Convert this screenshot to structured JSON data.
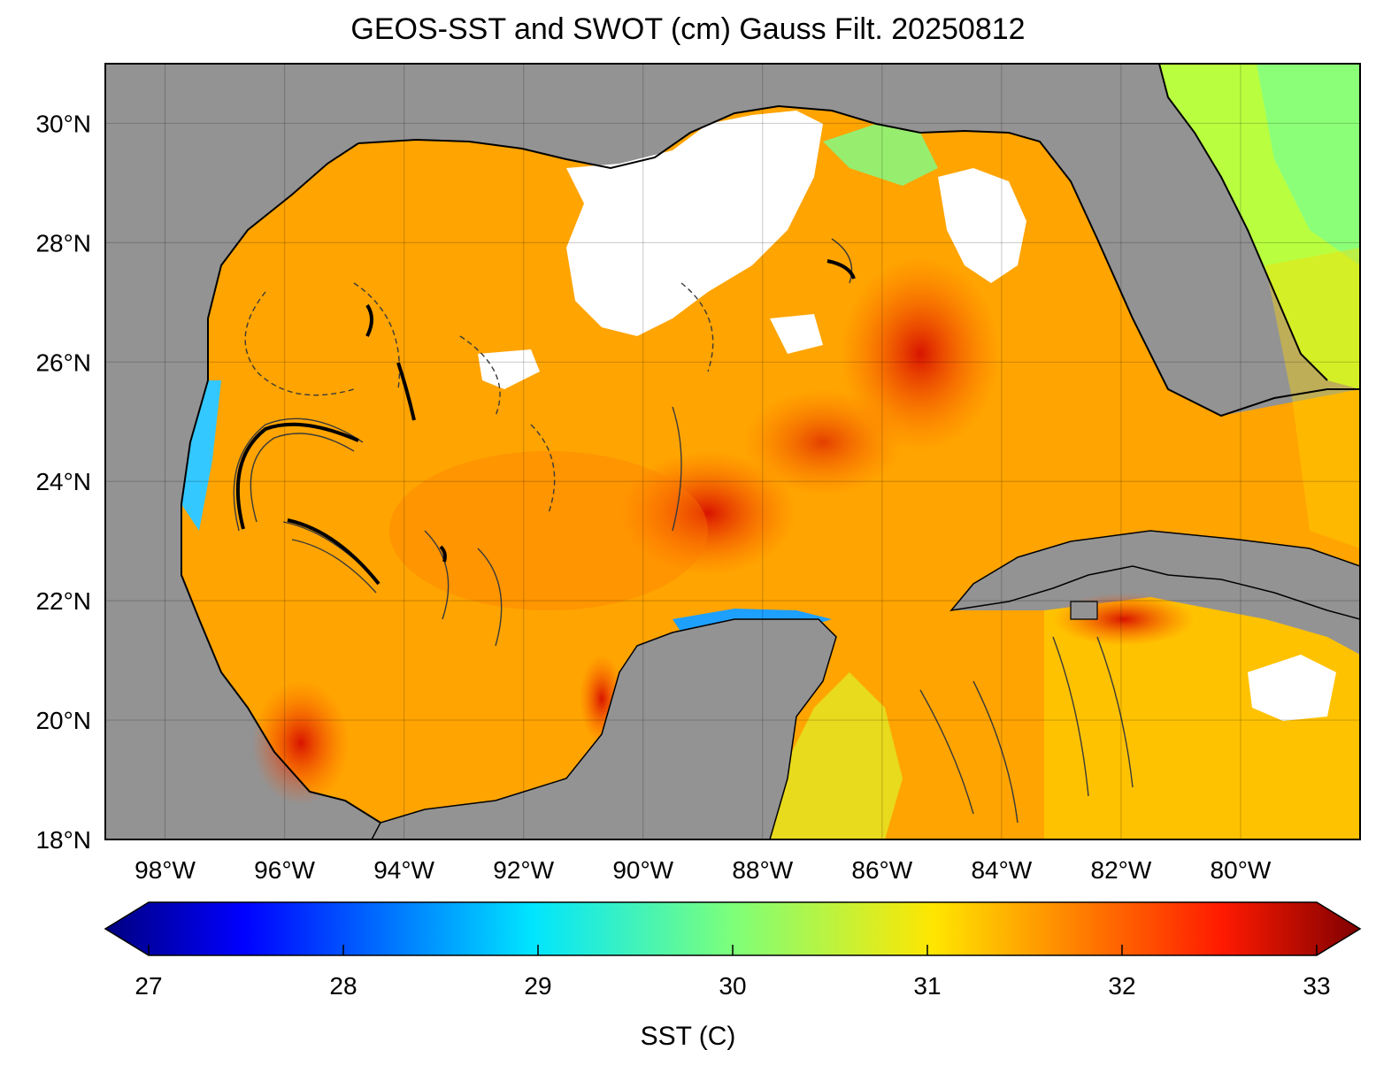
{
  "title": "GEOS-SST  and SWOT (cm) Gauss Filt. 20250812",
  "map": {
    "lat_range": [
      18,
      31
    ],
    "lon_range": [
      -99,
      -78
    ],
    "lat_ticks": [
      {
        "value": 30,
        "label": "30°N"
      },
      {
        "value": 28,
        "label": "28°N"
      },
      {
        "value": 26,
        "label": "26°N"
      },
      {
        "value": 24,
        "label": "24°N"
      },
      {
        "value": 22,
        "label": "22°N"
      },
      {
        "value": 20,
        "label": "20°N"
      },
      {
        "value": 18,
        "label": "18°N"
      }
    ],
    "lon_ticks": [
      {
        "value": -98,
        "label": "98°W"
      },
      {
        "value": -96,
        "label": "96°W"
      },
      {
        "value": -94,
        "label": "94°W"
      },
      {
        "value": -92,
        "label": "92°W"
      },
      {
        "value": -90,
        "label": "90°W"
      },
      {
        "value": -88,
        "label": "88°W"
      },
      {
        "value": -86,
        "label": "86°W"
      },
      {
        "value": -84,
        "label": "84°W"
      },
      {
        "value": -82,
        "label": "82°W"
      },
      {
        "value": -80,
        "label": "80°W"
      }
    ],
    "land_color": "#939393",
    "missing_color": "#ffffff",
    "grid": true
  },
  "colorbar": {
    "label": "SST (C)",
    "min": 27,
    "max": 33,
    "ticks": [
      "27",
      "28",
      "29",
      "30",
      "31",
      "32",
      "33"
    ],
    "colormap": "jet",
    "extend": "both"
  }
}
